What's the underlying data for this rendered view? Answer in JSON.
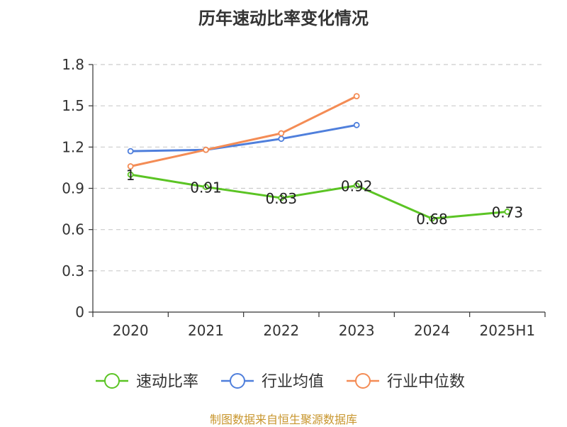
{
  "title": "历年速动比率变化情况",
  "source": "制图数据来自恒生聚源数据库",
  "chart_data": {
    "type": "line",
    "categories": [
      "2020",
      "2021",
      "2022",
      "2023",
      "2024",
      "2025H1"
    ],
    "yticks": [
      "0",
      "0.3",
      "0.6",
      "0.9",
      "1.2",
      "1.5",
      "1.8"
    ],
    "ylim": [
      0,
      1.8
    ],
    "grid": true,
    "legend_position": "bottom",
    "series": [
      {
        "name": "速动比率",
        "color": "#5bc424",
        "values": [
          1.0,
          0.91,
          0.83,
          0.92,
          0.68,
          0.73
        ],
        "labels": [
          "1",
          "0.91",
          "0.83",
          "0.92",
          "0.68",
          "0.73"
        ]
      },
      {
        "name": "行业均值",
        "color": "#4f7fdc",
        "values": [
          1.17,
          1.18,
          1.26,
          1.36,
          null,
          null
        ]
      },
      {
        "name": "行业中位数",
        "color": "#f48c55",
        "values": [
          1.06,
          1.18,
          1.3,
          1.57,
          null,
          null
        ]
      }
    ]
  }
}
